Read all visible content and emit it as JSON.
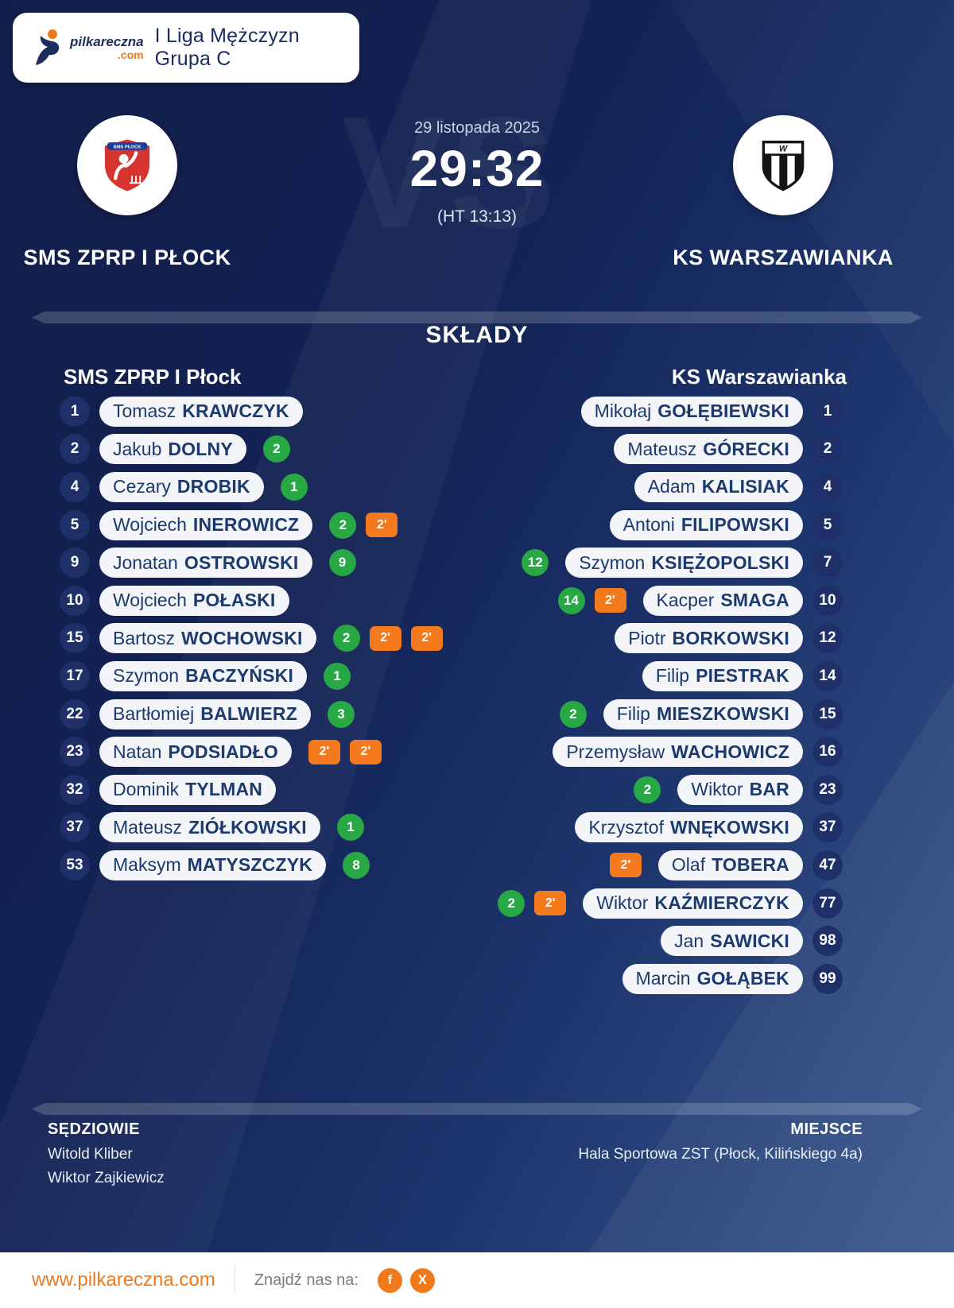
{
  "brand": {
    "name": "pilkareczna",
    "tld": ".com"
  },
  "header": {
    "league": "I Liga Mężczyzn Grupa C"
  },
  "match": {
    "date": "29 listopada 2025",
    "score": "29:32",
    "halftime": "(HT 13:13)",
    "vs": "VS"
  },
  "teams": {
    "home": {
      "name": "SMS ZPRP I PŁOCK",
      "crest_text": "SMS PŁOCK"
    },
    "away": {
      "name": "KS WARSZAWIANKA",
      "crest_letter": "W"
    }
  },
  "lineups": {
    "title": "SKŁADY",
    "home": {
      "title": "SMS ZPRP I Płock",
      "players": [
        {
          "number": "1",
          "first": "Tomasz",
          "last": "KRAWCZYK",
          "goals": "",
          "cards": []
        },
        {
          "number": "2",
          "first": "Jakub",
          "last": "DOLNY",
          "goals": "2",
          "cards": []
        },
        {
          "number": "4",
          "first": "Cezary",
          "last": "DROBIK",
          "goals": "1",
          "cards": []
        },
        {
          "number": "5",
          "first": "Wojciech",
          "last": "INEROWICZ",
          "goals": "2",
          "cards": [
            "2'"
          ]
        },
        {
          "number": "9",
          "first": "Jonatan",
          "last": "OSTROWSKI",
          "goals": "9",
          "cards": []
        },
        {
          "number": "10",
          "first": "Wojciech",
          "last": "POŁASKI",
          "goals": "",
          "cards": []
        },
        {
          "number": "15",
          "first": "Bartosz",
          "last": "WOCHOWSKI",
          "goals": "2",
          "cards": [
            "2'",
            "2'"
          ]
        },
        {
          "number": "17",
          "first": "Szymon",
          "last": "BACZYŃSKI",
          "goals": "1",
          "cards": []
        },
        {
          "number": "22",
          "first": "Bartłomiej",
          "last": "BALWIERZ",
          "goals": "3",
          "cards": []
        },
        {
          "number": "23",
          "first": "Natan",
          "last": "PODSIADŁO",
          "goals": "",
          "cards": [
            "2'",
            "2'"
          ]
        },
        {
          "number": "32",
          "first": "Dominik",
          "last": "TYLMAN",
          "goals": "",
          "cards": []
        },
        {
          "number": "37",
          "first": "Mateusz",
          "last": "ZIÓŁKOWSKI",
          "goals": "1",
          "cards": []
        },
        {
          "number": "53",
          "first": "Maksym",
          "last": "MATYSZCZYK",
          "goals": "8",
          "cards": []
        }
      ]
    },
    "away": {
      "title": "KS Warszawianka",
      "players": [
        {
          "number": "1",
          "first": "Mikołaj",
          "last": "GOŁĘBIEWSKI",
          "goals": "",
          "cards": []
        },
        {
          "number": "2",
          "first": "Mateusz",
          "last": "GÓRECKI",
          "goals": "",
          "cards": []
        },
        {
          "number": "4",
          "first": "Adam",
          "last": "KALISIAK",
          "goals": "",
          "cards": []
        },
        {
          "number": "5",
          "first": "Antoni",
          "last": "FILIPOWSKI",
          "goals": "",
          "cards": []
        },
        {
          "number": "7",
          "first": "Szymon",
          "last": "KSIĘŻOPOLSKI",
          "goals": "12",
          "cards": []
        },
        {
          "number": "10",
          "first": "Kacper",
          "last": "SMAGA",
          "goals": "14",
          "cards": [
            "2'"
          ]
        },
        {
          "number": "12",
          "first": "Piotr",
          "last": "BORKOWSKI",
          "goals": "",
          "cards": []
        },
        {
          "number": "14",
          "first": "Filip",
          "last": "PIESTRAK",
          "goals": "",
          "cards": []
        },
        {
          "number": "15",
          "first": "Filip",
          "last": "MIESZKOWSKI",
          "goals": "2",
          "cards": []
        },
        {
          "number": "16",
          "first": "Przemysław",
          "last": "WACHOWICZ",
          "goals": "",
          "cards": []
        },
        {
          "number": "23",
          "first": "Wiktor",
          "last": "BAR",
          "goals": "2",
          "cards": []
        },
        {
          "number": "37",
          "first": "Krzysztof",
          "last": "WNĘKOWSKI",
          "goals": "",
          "cards": []
        },
        {
          "number": "47",
          "first": "Olaf",
          "last": "TOBERA",
          "goals": "",
          "cards": [
            "2'"
          ]
        },
        {
          "number": "77",
          "first": "Wiktor",
          "last": "KAŹMIERCZYK",
          "goals": "2",
          "cards": [
            "2'"
          ]
        },
        {
          "number": "98",
          "first": "Jan",
          "last": "SAWICKI",
          "goals": "",
          "cards": []
        },
        {
          "number": "99",
          "first": "Marcin",
          "last": "GOŁĄBEK",
          "goals": "",
          "cards": []
        }
      ]
    }
  },
  "officials": {
    "referees_label": "SĘDZIOWIE",
    "referees": [
      "Witold Kliber",
      "Wiktor Zajkiewicz"
    ],
    "venue_label": "MIEJSCE",
    "venue": "Hala Sportowa ZST (Płock, Kilińskiego 4a)"
  },
  "footer": {
    "website": "www.pilkareczna.com",
    "social_label": "Znajdź nas na:",
    "facebook_glyph": "f",
    "x_glyph": "X"
  },
  "colors": {
    "goal_green": "#27a845",
    "card_orange": "#f5791d",
    "accent_orange": "#f0791c",
    "navy_background": "#14235a",
    "pill_background": "#f3f5f9",
    "pill_text": "#1c3a6e"
  }
}
